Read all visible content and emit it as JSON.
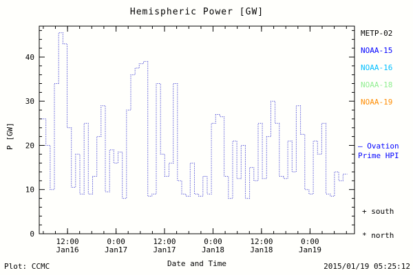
{
  "chart_data": {
    "type": "line",
    "title": "Hemispheric Power [GW]",
    "xlabel": "Date and Time",
    "ylabel": "P [GW]",
    "ylim": [
      0,
      47
    ],
    "yticks": [
      0,
      10,
      20,
      30,
      40
    ],
    "y_minor_step": 2,
    "xlim_hours": [
      0,
      78
    ],
    "x_minor_start": 1,
    "x_minor_step_hours": 3,
    "xticks": [
      {
        "hour": 7,
        "time": "12:00",
        "date": "Jan16"
      },
      {
        "hour": 19,
        "time": "0:00",
        "date": "Jan17"
      },
      {
        "hour": 31,
        "time": "12:00",
        "date": "Jan17"
      },
      {
        "hour": 43,
        "time": "0:00",
        "date": "Jan18"
      },
      {
        "hour": 55,
        "time": "12:00",
        "date": "Jan18"
      },
      {
        "hour": 67,
        "time": "0:00",
        "date": "Jan19"
      }
    ],
    "line_color": "#2222cc",
    "line_style": "dotted",
    "grid": false,
    "legend_position": "right-outside",
    "series": [
      {
        "name": "Ovation Prime HPI",
        "step": true,
        "x_hours_start": 0.6,
        "x_hours_step": 1.05,
        "values": [
          26,
          20,
          10,
          34,
          45.5,
          43,
          24,
          10.5,
          18,
          9,
          25,
          9,
          13,
          22,
          29,
          9.5,
          19,
          16,
          18.5,
          8,
          28,
          36,
          37.5,
          38.5,
          39,
          8.5,
          9,
          34,
          18,
          13,
          16,
          34,
          12,
          9,
          8.5,
          16,
          9,
          8.5,
          13,
          9,
          25,
          27,
          26.5,
          13,
          8,
          21,
          12.5,
          20,
          8,
          15,
          12,
          25,
          12.5,
          22,
          30,
          25,
          13,
          12.5,
          21,
          14,
          29,
          22.5,
          10,
          9,
          21,
          18,
          25,
          9,
          8.5,
          14,
          12,
          13.5
        ]
      }
    ]
  },
  "legend": {
    "satellites": [
      {
        "label": "METP-02",
        "color": "#000000"
      },
      {
        "label": "NOAA-15",
        "color": "#0000ff"
      },
      {
        "label": "NOAA-16",
        "color": "#00bfff"
      },
      {
        "label": "NOAA-18",
        "color": "#90ee90"
      },
      {
        "label": "NOAA-19",
        "color": "#ff8c00"
      }
    ],
    "model_label_line1": "– Ovation",
    "model_label_line2": "Prime HPI",
    "model_color": "#0000ff",
    "south_marker": "+ south",
    "north_marker": "* north"
  },
  "footer": {
    "left": "Plot: CCMC",
    "right": "2015/01/19 05:25:12"
  }
}
